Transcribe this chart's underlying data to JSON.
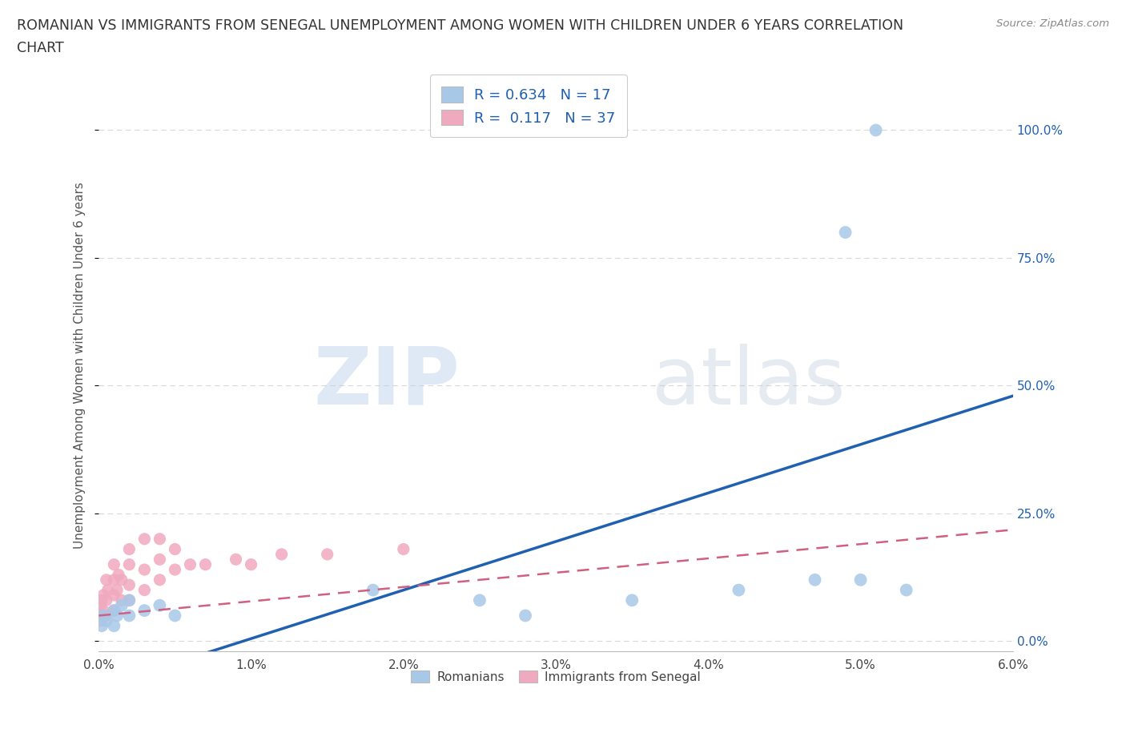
{
  "title_line1": "ROMANIAN VS IMMIGRANTS FROM SENEGAL UNEMPLOYMENT AMONG WOMEN WITH CHILDREN UNDER 6 YEARS CORRELATION",
  "title_line2": "CHART",
  "source_text": "Source: ZipAtlas.com",
  "ylabel": "Unemployment Among Women with Children Under 6 years",
  "xlim": [
    0.0,
    0.06
  ],
  "ylim": [
    -0.02,
    1.1
  ],
  "xtick_labels": [
    "0.0%",
    "1.0%",
    "2.0%",
    "3.0%",
    "4.0%",
    "5.0%",
    "6.0%"
  ],
  "xtick_values": [
    0.0,
    0.01,
    0.02,
    0.03,
    0.04,
    0.05,
    0.06
  ],
  "ytick_labels": [
    "0.0%",
    "25.0%",
    "50.0%",
    "75.0%",
    "100.0%"
  ],
  "ytick_values": [
    0.0,
    0.25,
    0.5,
    0.75,
    1.0
  ],
  "romanian_color": "#a8c8e8",
  "senegal_color": "#f0aabf",
  "romanian_line_color": "#2060b0",
  "senegal_line_color": "#d06080",
  "senegal_dashed_color": "#d06080",
  "romanian_R": "0.634",
  "romanian_N": "17",
  "senegal_R": "0.117",
  "senegal_N": "37",
  "legend_bottom_labels": [
    "Romanians",
    "Immigrants from Senegal"
  ],
  "watermark_text": "ZIPatlas",
  "background_color": "#ffffff",
  "grid_color": "#d8d8d8",
  "ytick_color": "#2060b0",
  "title_color": "#333333",
  "source_color": "#888888"
}
